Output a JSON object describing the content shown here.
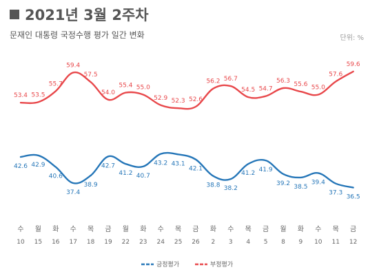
{
  "header": {
    "title": "2021년 3월 2주차",
    "subtitle": "문재인 대통령 국정수행 평가 일간 변화",
    "unit": "단위: %"
  },
  "chart_data": {
    "type": "line",
    "categories": [
      {
        "day": "수",
        "date": "10"
      },
      {
        "day": "월",
        "date": "15"
      },
      {
        "day": "화",
        "date": "16"
      },
      {
        "day": "수",
        "date": "17"
      },
      {
        "day": "목",
        "date": "18"
      },
      {
        "day": "금",
        "date": "19"
      },
      {
        "day": "월",
        "date": "22"
      },
      {
        "day": "화",
        "date": "23"
      },
      {
        "day": "수",
        "date": "24"
      },
      {
        "day": "목",
        "date": "25"
      },
      {
        "day": "금",
        "date": "26"
      },
      {
        "day": "화",
        "date": "2"
      },
      {
        "day": "수",
        "date": "3"
      },
      {
        "day": "목",
        "date": "4"
      },
      {
        "day": "금",
        "date": "5"
      },
      {
        "day": "월",
        "date": "8"
      },
      {
        "day": "화",
        "date": "9"
      },
      {
        "day": "수",
        "date": "10"
      },
      {
        "day": "목",
        "date": "11"
      },
      {
        "day": "금",
        "date": "12"
      }
    ],
    "series": [
      {
        "name": "긍정평가",
        "color": "#2576b8",
        "values": [
          42.6,
          42.9,
          40.6,
          37.4,
          38.9,
          42.7,
          41.2,
          40.7,
          43.2,
          43.1,
          42.1,
          38.8,
          38.2,
          41.2,
          41.9,
          39.2,
          38.5,
          39.4,
          37.3,
          36.5
        ],
        "labels": [
          "42.6",
          "42.9",
          "40.6",
          "37.4",
          "38.9",
          "42.7",
          "41.2",
          "40.7",
          "43.2",
          "43.1",
          "42.1",
          "38.8",
          "38.2",
          "41.2",
          "41.9",
          "39.2",
          "38.5",
          "39.4",
          "37.3",
          "36.5"
        ]
      },
      {
        "name": "부정평가",
        "color": "#e8474a",
        "values": [
          53.4,
          53.5,
          55.7,
          59.4,
          57.5,
          54.0,
          55.4,
          55.0,
          52.9,
          52.3,
          52.6,
          56.2,
          56.7,
          54.5,
          54.7,
          56.3,
          55.6,
          55.0,
          57.6,
          59.6
        ],
        "labels": [
          "53.4",
          "53.5",
          "55.7",
          "59.4",
          "57.5",
          "54.0",
          "55.4",
          "55.0",
          "52.9",
          "52.3",
          "52.6",
          "56.2",
          "56.7",
          "54.5",
          "54.7",
          "56.3",
          "55.6",
          "55.0",
          "57.6",
          "59.6"
        ]
      }
    ],
    "legend_placement": "bottom-center",
    "grid": false
  }
}
